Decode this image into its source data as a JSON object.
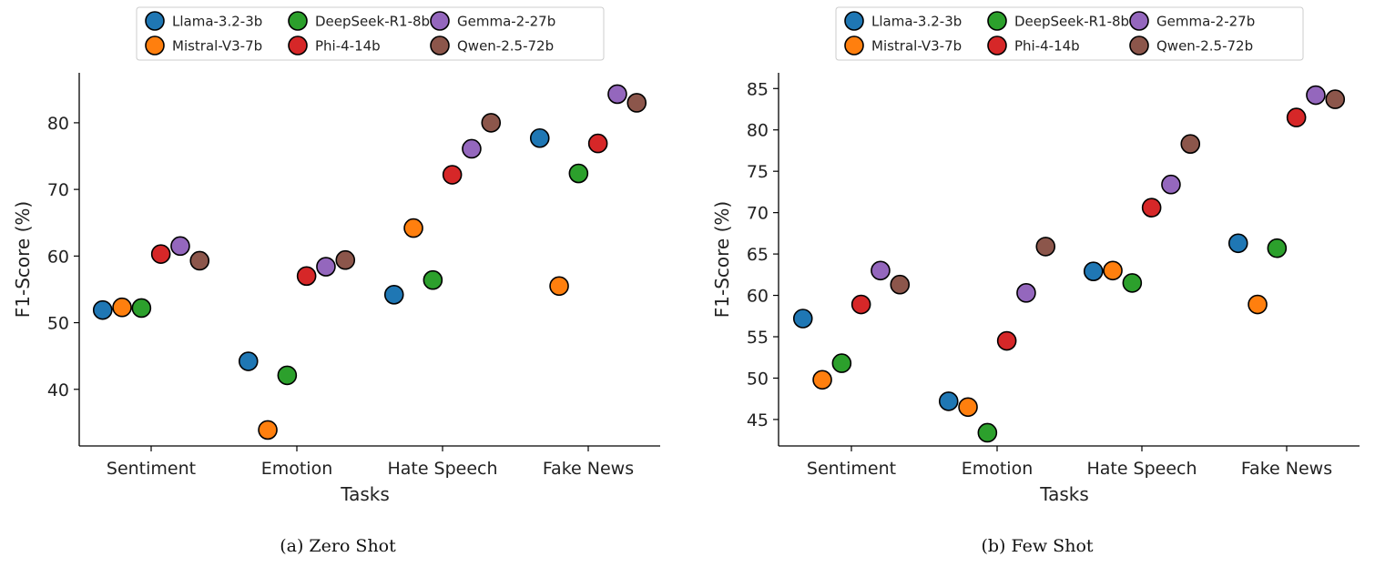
{
  "chart_data": [
    {
      "type": "scatter",
      "caption": "(a)  Zero Shot",
      "xlabel": "Tasks",
      "ylabel": "F1-Score (%)",
      "categories": [
        "Sentiment",
        "Emotion",
        "Hate Speech",
        "Fake News"
      ],
      "yticks": [
        40,
        50,
        60,
        70,
        80
      ],
      "ylim": [
        31.5,
        87.5
      ],
      "legend_position": "top",
      "series": [
        {
          "name": "Llama-3.2-3b",
          "color": "#1f77b4",
          "values": [
            51.9,
            44.2,
            54.2,
            77.7
          ]
        },
        {
          "name": "Mistral-V3-7b",
          "color": "#ff7f0e",
          "values": [
            52.3,
            33.9,
            64.2,
            55.5
          ]
        },
        {
          "name": "DeepSeek-R1-8b",
          "color": "#2ca02c",
          "values": [
            52.2,
            42.1,
            56.4,
            72.4
          ]
        },
        {
          "name": "Phi-4-14b",
          "color": "#d62728",
          "values": [
            60.3,
            57.0,
            72.2,
            76.9
          ]
        },
        {
          "name": "Gemma-2-27b",
          "color": "#9467bd",
          "values": [
            61.5,
            58.4,
            76.1,
            84.3
          ]
        },
        {
          "name": "Qwen-2.5-72b",
          "color": "#8c564b",
          "values": [
            59.3,
            59.4,
            80.0,
            83.0
          ]
        }
      ]
    },
    {
      "type": "scatter",
      "caption": "(b)  Few Shot",
      "xlabel": "Tasks",
      "ylabel": "F1-Score (%)",
      "categories": [
        "Sentiment",
        "Emotion",
        "Hate Speech",
        "Fake News"
      ],
      "yticks": [
        45,
        50,
        55,
        60,
        65,
        70,
        75,
        80,
        85
      ],
      "ylim": [
        41.8,
        86.9
      ],
      "legend_position": "top",
      "series": [
        {
          "name": "Llama-3.2-3b",
          "color": "#1f77b4",
          "values": [
            57.2,
            47.2,
            62.9,
            66.3
          ]
        },
        {
          "name": "Mistral-V3-7b",
          "color": "#ff7f0e",
          "values": [
            49.8,
            46.5,
            63.0,
            58.9
          ]
        },
        {
          "name": "DeepSeek-R1-8b",
          "color": "#2ca02c",
          "values": [
            51.8,
            43.4,
            61.5,
            65.7
          ]
        },
        {
          "name": "Phi-4-14b",
          "color": "#d62728",
          "values": [
            58.9,
            54.5,
            70.6,
            81.5
          ]
        },
        {
          "name": "Gemma-2-27b",
          "color": "#9467bd",
          "values": [
            63.0,
            60.3,
            73.4,
            84.2
          ]
        },
        {
          "name": "Qwen-2.5-72b",
          "color": "#8c564b",
          "values": [
            61.3,
            65.9,
            78.3,
            83.7
          ]
        }
      ]
    }
  ]
}
